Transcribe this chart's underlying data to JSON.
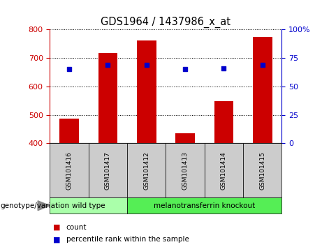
{
  "title": "GDS1964 / 1437986_x_at",
  "samples": [
    "GSM101416",
    "GSM101417",
    "GSM101412",
    "GSM101413",
    "GSM101414",
    "GSM101415"
  ],
  "counts": [
    487,
    717,
    762,
    435,
    547,
    775
  ],
  "percentile_ranks": [
    65,
    69,
    69,
    65,
    66,
    69
  ],
  "ylim_left": [
    400,
    800
  ],
  "ylim_right": [
    0,
    100
  ],
  "yticks_left": [
    400,
    500,
    600,
    700,
    800
  ],
  "yticks_right": [
    0,
    25,
    50,
    75,
    100
  ],
  "bar_color": "#cc0000",
  "dot_color": "#0000cc",
  "groups": [
    {
      "label": "wild type",
      "indices": [
        0,
        1
      ],
      "color": "#aaffaa"
    },
    {
      "label": "melanotransferrin knockout",
      "indices": [
        2,
        3,
        4,
        5
      ],
      "color": "#55ee55"
    }
  ],
  "xlabel_group": "genotype/variation",
  "legend_count_label": "count",
  "legend_pct_label": "percentile rank within the sample",
  "tick_label_color_left": "#cc0000",
  "tick_label_color_right": "#0000cc",
  "sample_box_color": "#cccccc",
  "bar_bottom": 400,
  "bar_width": 0.5
}
